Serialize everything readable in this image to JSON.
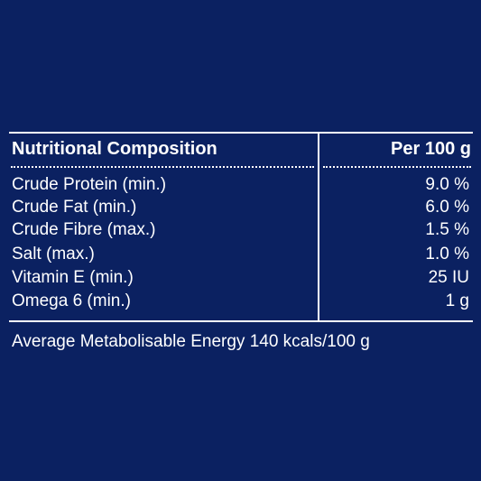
{
  "colors": {
    "background": "#0b2161",
    "text": "#ffffff"
  },
  "table": {
    "header": {
      "label": "Nutritional Composition",
      "value": "Per 100 g"
    },
    "rows": [
      {
        "label": "Crude Protein (min.)",
        "value": "9.0 %"
      },
      {
        "label": "Crude Fat (min.)",
        "value": "6.0 %"
      },
      {
        "label": "Crude Fibre (max.)",
        "value": "1.5 %"
      },
      {
        "label": "Salt (max.)",
        "value": "1.0 %"
      },
      {
        "label": "Vitamin E (min.)",
        "value": "25 IU"
      },
      {
        "label": "Omega 6 (min.)",
        "value": "1 g"
      }
    ],
    "footer": "Average Metabolisable Energy 140 kcals/100 g"
  }
}
